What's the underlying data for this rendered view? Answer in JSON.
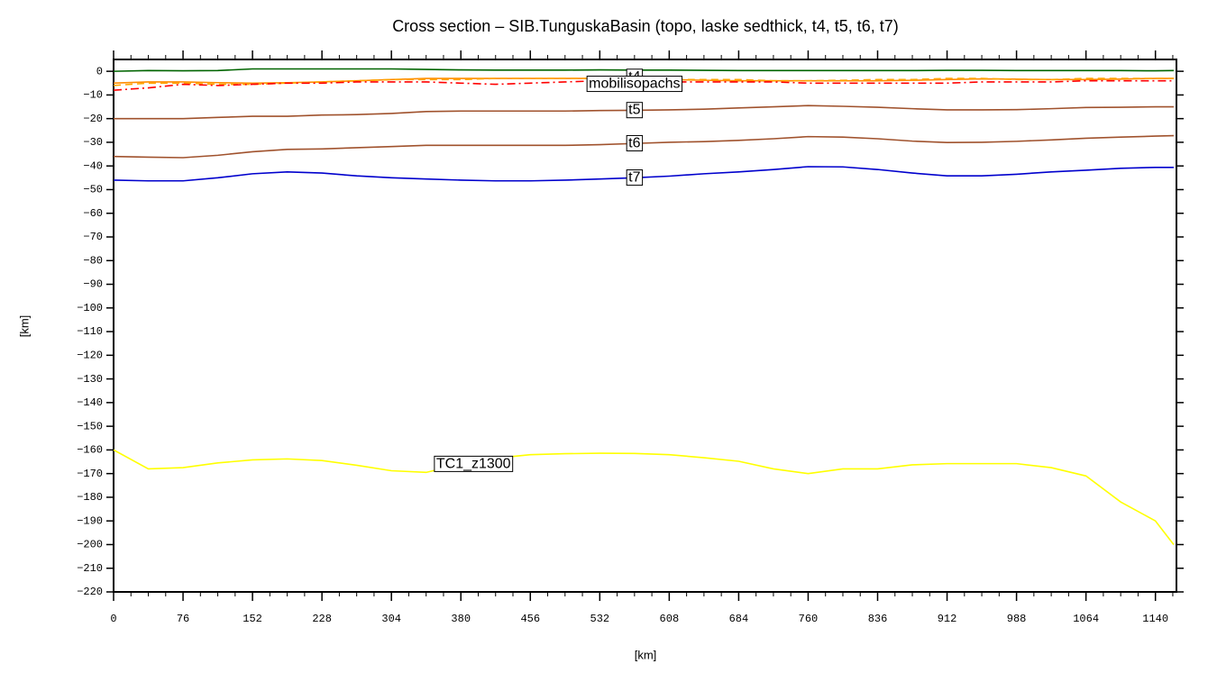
{
  "chart_data": {
    "type": "line",
    "title": "Cross section – SIB.TunguskaBasin (topo, laske sedthick, t4, t5, t6, t7)",
    "x_label": "[km]",
    "y_label": "[km]",
    "x": [
      0,
      38,
      76,
      114,
      152,
      190,
      228,
      266,
      304,
      342,
      380,
      418,
      456,
      494,
      532,
      570,
      608,
      646,
      684,
      722,
      760,
      798,
      836,
      874,
      912,
      950,
      988,
      1026,
      1064,
      1102,
      1140,
      1160
    ],
    "xlim": [
      0,
      1163
    ],
    "ylim": [
      -220,
      5
    ],
    "xticks": [
      0,
      76,
      152,
      228,
      304,
      380,
      456,
      532,
      608,
      684,
      760,
      836,
      912,
      988,
      1064,
      1140
    ],
    "yticks": [
      0,
      {
        "value": -10,
        "label": "−10"
      },
      {
        "value": -20,
        "label": "−20"
      },
      {
        "value": -30,
        "label": "−30"
      },
      {
        "value": -40,
        "label": "−40"
      },
      {
        "value": -50,
        "label": "−50"
      },
      {
        "value": -60,
        "label": "−60"
      },
      {
        "value": -70,
        "label": "−70"
      },
      {
        "value": -80,
        "label": "−80"
      },
      {
        "value": -90,
        "label": "−90"
      },
      {
        "value": -100,
        "label": "−100"
      },
      {
        "value": -110,
        "label": "−110"
      },
      {
        "value": -120,
        "label": "−120"
      },
      {
        "value": -130,
        "label": "−130"
      },
      {
        "value": -140,
        "label": "−140"
      },
      {
        "value": -150,
        "label": "−150"
      },
      {
        "value": -160,
        "label": "−160"
      },
      {
        "value": -170,
        "label": "−170"
      },
      {
        "value": -180,
        "label": "−180"
      },
      {
        "value": -190,
        "label": "−190"
      },
      {
        "value": -200,
        "label": "−200"
      },
      {
        "value": -210,
        "label": "−210"
      },
      {
        "value": -220,
        "label": "−220"
      }
    ],
    "series": [
      {
        "color": "#006400",
        "values": [
          0,
          0.3,
          0.2,
          0.3,
          1,
          1,
          1,
          1,
          1,
          0.8,
          0.6,
          0.5,
          0.5,
          0.5,
          0.6,
          0.5,
          0.5,
          0.4,
          0.3,
          0.3,
          0.3,
          0.3,
          0.3,
          0.3,
          0.4,
          0.4,
          0.3,
          0.3,
          0.3,
          0.3,
          0.2,
          0.3
        ]
      },
      {
        "name": "t4",
        "color": "#ff8c00",
        "values": [
          -5,
          -4.5,
          -4.5,
          -4.8,
          -5,
          -4.8,
          -4.5,
          -4,
          -3.5,
          -3,
          -3,
          -3,
          -3,
          -3,
          -3,
          -3.2,
          -3.5,
          -3.8,
          -4,
          -4,
          -4,
          -4,
          -4,
          -3.8,
          -3.5,
          -3.2,
          -3.3,
          -3.5,
          -3.5,
          -3.3,
          -3,
          -3
        ]
      },
      {
        "name": "mobilisopachs",
        "color": "#ffa500",
        "dash": "8 5",
        "values": [
          -6,
          -5,
          -5,
          -5.5,
          -5.5,
          -5,
          -4.5,
          -4,
          -3.5,
          -3.5,
          -3.5,
          -3,
          -3,
          -3,
          -3,
          -3.5,
          -3.5,
          -3.5,
          -3.5,
          -4,
          -4,
          -3.8,
          -3.5,
          -3.5,
          -3,
          -3,
          -3.5,
          -3.5,
          -3,
          -3,
          -3,
          -3
        ]
      },
      {
        "color": "#ff0000",
        "dash": "9 4 2 4",
        "values": [
          -8,
          -7,
          -5.5,
          -6,
          -5.5,
          -5,
          -5,
          -4.5,
          -4.5,
          -4.5,
          -5,
          -5.5,
          -5,
          -4.5,
          -4,
          -4,
          -4.5,
          -4.5,
          -4.5,
          -4.5,
          -5,
          -5,
          -5,
          -5,
          -5,
          -4.5,
          -4.5,
          -4.5,
          -4,
          -4,
          -4,
          -4
        ]
      },
      {
        "name": "t5",
        "color": "#a0522d",
        "values": [
          -20,
          -20,
          -20,
          -19.5,
          -19,
          -19,
          -18.5,
          -18.3,
          -17.8,
          -17,
          -16.8,
          -16.8,
          -16.8,
          -16.8,
          -16.6,
          -16.5,
          -16.3,
          -16,
          -15.5,
          -15,
          -14.5,
          -14.8,
          -15.2,
          -15.8,
          -16.3,
          -16.3,
          -16.2,
          -15.8,
          -15.3,
          -15.2,
          -15,
          -15
        ]
      },
      {
        "name": "t6",
        "color": "#a0522d",
        "values": [
          -36,
          -36.3,
          -36.5,
          -35.5,
          -34,
          -33,
          -32.8,
          -32.3,
          -31.8,
          -31.3,
          -31.3,
          -31.3,
          -31.3,
          -31.3,
          -31,
          -30.5,
          -30,
          -29.7,
          -29.2,
          -28.5,
          -27.6,
          -27.8,
          -28.5,
          -29.5,
          -30.1,
          -30,
          -29.6,
          -29,
          -28.3,
          -27.8,
          -27.4,
          -27.2
        ]
      },
      {
        "name": "t7",
        "color": "#0000cd",
        "values": [
          -46,
          -46.3,
          -46.3,
          -45,
          -43.3,
          -42.5,
          -43,
          -44.2,
          -45,
          -45.5,
          -46,
          -46.3,
          -46.3,
          -46,
          -45.5,
          -45,
          -44.3,
          -43.3,
          -42.5,
          -41.5,
          -40.3,
          -40.4,
          -41.5,
          -43,
          -44.2,
          -44.2,
          -43.5,
          -42.5,
          -41.8,
          -41,
          -40.6,
          -40.6
        ]
      },
      {
        "name": "TC1_z1300",
        "color": "#ffff00",
        "values": [
          -160,
          -168,
          -167.5,
          -165.5,
          -164.2,
          -163.8,
          -164.5,
          -166.5,
          -168.8,
          -169.5,
          -166,
          -163.5,
          -162,
          -161.6,
          -161.4,
          -161.5,
          -162,
          -163.3,
          -164.8,
          -168,
          -170,
          -168,
          -168,
          -166.3,
          -165.8,
          -165.8,
          -165.8,
          -167.5,
          -171,
          -182,
          -190,
          -200
        ]
      }
    ]
  }
}
